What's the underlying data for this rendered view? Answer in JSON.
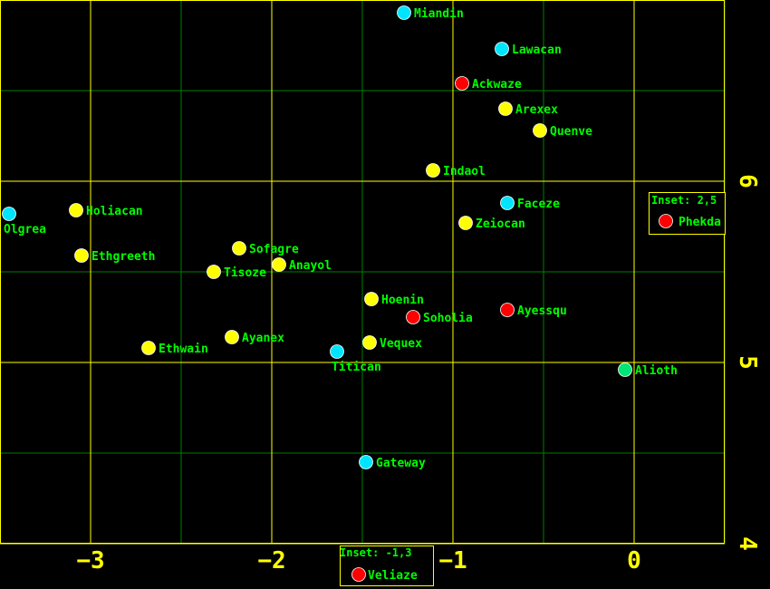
{
  "map": {
    "x_ticks": [
      "−3",
      "−2",
      "−1",
      "0"
    ],
    "y_ticks": [
      "6",
      "5",
      "4"
    ],
    "colors": {
      "background": "#000000",
      "frame": "#ffff00",
      "major_grid": "#ffff00",
      "minor_grid": "#008000",
      "label": "#00ff00",
      "tick": "#ffff00"
    },
    "systems": [
      {
        "name": "Miandin",
        "x": -1.27,
        "y": 6.93,
        "color": "#00e5ff"
      },
      {
        "name": "Lawacan",
        "x": -0.73,
        "y": 6.73,
        "color": "#00e5ff"
      },
      {
        "name": "Ackwaze",
        "x": -0.95,
        "y": 6.54,
        "color": "#ff0000"
      },
      {
        "name": "Arexex",
        "x": -0.71,
        "y": 6.4,
        "color": "#ffff00"
      },
      {
        "name": "Quenve",
        "x": -0.52,
        "y": 6.28,
        "color": "#ffff00"
      },
      {
        "name": "Indaol",
        "x": -1.11,
        "y": 6.06,
        "color": "#ffff00"
      },
      {
        "name": "Faceze",
        "x": -0.7,
        "y": 5.88,
        "color": "#00e5ff"
      },
      {
        "name": "Zeiocan",
        "x": -0.93,
        "y": 5.77,
        "color": "#ffff00"
      },
      {
        "name": "Olgrea",
        "x": -3.45,
        "y": 5.82,
        "color": "#00e5ff",
        "label_below": true
      },
      {
        "name": "Holiacan",
        "x": -3.08,
        "y": 5.84,
        "color": "#ffff00"
      },
      {
        "name": "Ethgreeth",
        "x": -3.05,
        "y": 5.59,
        "color": "#ffff00"
      },
      {
        "name": "Sofagre",
        "x": -2.18,
        "y": 5.63,
        "color": "#ffff00"
      },
      {
        "name": "Anayol",
        "x": -1.96,
        "y": 5.54,
        "color": "#ffff00"
      },
      {
        "name": "Tisoze",
        "x": -2.32,
        "y": 5.5,
        "color": "#ffff00"
      },
      {
        "name": "Hoenin",
        "x": -1.45,
        "y": 5.35,
        "color": "#ffff00"
      },
      {
        "name": "Soholia",
        "x": -1.22,
        "y": 5.25,
        "color": "#ff0000"
      },
      {
        "name": "Ayessqu",
        "x": -0.7,
        "y": 5.29,
        "color": "#ff0000"
      },
      {
        "name": "Ayanex",
        "x": -2.22,
        "y": 5.14,
        "color": "#ffff00"
      },
      {
        "name": "Ethwain",
        "x": -2.68,
        "y": 5.08,
        "color": "#ffff00"
      },
      {
        "name": "Vequex",
        "x": -1.46,
        "y": 5.11,
        "color": "#ffff00"
      },
      {
        "name": "Titican",
        "x": -1.64,
        "y": 5.06,
        "color": "#00e5ff",
        "label_below": true
      },
      {
        "name": "Alioth",
        "x": -0.05,
        "y": 4.96,
        "color": "#00e676"
      },
      {
        "name": "Gateway",
        "x": -1.48,
        "y": 4.45,
        "color": "#00e5ff"
      }
    ],
    "insets": [
      {
        "title": "Inset: 2,5",
        "name": "Phekda",
        "color": "#ff0000"
      },
      {
        "title": "Inset: -1,3",
        "name": "Veliaze",
        "color": "#ff0000"
      }
    ]
  }
}
